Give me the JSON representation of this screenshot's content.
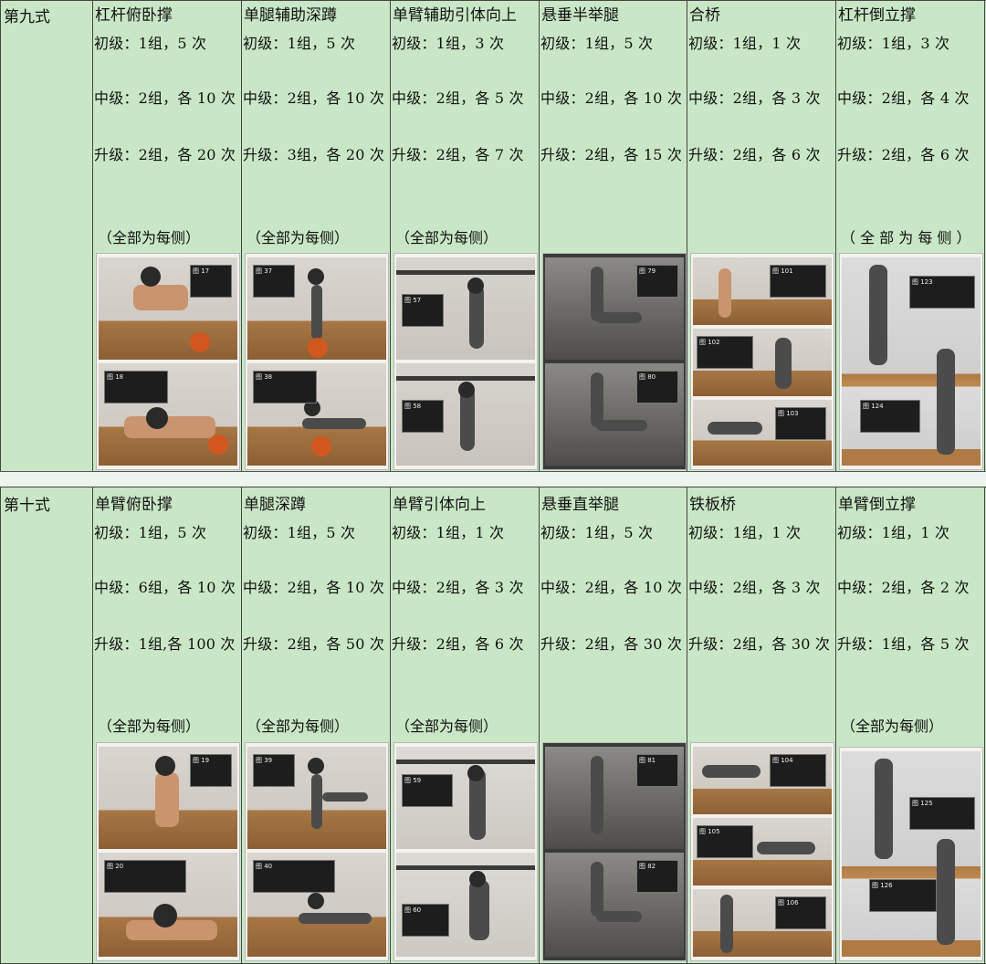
{
  "sections": [
    {
      "label": "第九式",
      "exercises": [
        {
          "name": "杠杆俯卧撑",
          "beginner": "初级：1组，5 次",
          "intermediate": "中级：2组，各 10 次",
          "advanced": "升级：2组，各 20 次",
          "note": "（全部为每侧）"
        },
        {
          "name": "单腿辅助深蹲",
          "beginner": "初级：1组，5 次",
          "intermediate": "中级：2组，各 10 次",
          "advanced": "升级：3组，各 20 次",
          "note": "（全部为每侧）"
        },
        {
          "name": "单臂辅助引体向上",
          "beginner": "初级：1组，3 次",
          "intermediate": "中级：2组，各 5 次",
          "advanced": "升级：2组，各 7 次",
          "note": "（全部为每侧）"
        },
        {
          "name": "悬垂半举腿",
          "beginner": "初级：1组，5 次",
          "intermediate": "中级：2组，各 10 次",
          "advanced": "升级：2组，各 15 次",
          "note": ""
        },
        {
          "name": "合桥",
          "beginner": "初级：1组，1 次",
          "intermediate": "中级：2组，各 3 次",
          "advanced": "升级：2组，各 6 次",
          "note": ""
        },
        {
          "name": "杠杆倒立撑",
          "beginner": "初级：1组，3 次",
          "intermediate": "中级：2组，各 4 次",
          "advanced": "升级：2组，各 6 次",
          "note": "（ 全 部 为 每 侧 ）"
        }
      ]
    },
    {
      "label": "第十式",
      "exercises": [
        {
          "name": "单臂俯卧撑",
          "beginner": "初级：1组，5 次",
          "intermediate": "中级：6组，各 10 次",
          "advanced": "升级：1组,各 100 次",
          "note": "（全部为每侧）"
        },
        {
          "name": "单腿深蹲",
          "beginner": "初级：1组，5 次",
          "intermediate": "中级：2组，各 10 次",
          "advanced": "升级：2组，各 50 次",
          "note": "（全部为每侧）"
        },
        {
          "name": "单臂引体向上",
          "beginner": "初级：1组，1 次",
          "intermediate": "中级：2组，各 3 次",
          "advanced": "升级：2组，各 6 次",
          "note": "（全部为每侧）"
        },
        {
          "name": "悬垂直举腿",
          "beginner": "初级：1组，5 次",
          "intermediate": "中级：2组，各 10 次",
          "advanced": "升级：2组，各 30 次",
          "note": ""
        },
        {
          "name": "铁板桥",
          "beginner": "初级：1组，1 次",
          "intermediate": "中级：2组，各 3 次",
          "advanced": "升级：2组，各 30 次",
          "note": ""
        },
        {
          "name": "单臂倒立撑",
          "beginner": "初级：1组，1 次",
          "intermediate": "中级：2组，各 2 次",
          "advanced": "升级：1组，各 5 次",
          "note": "（全部为每侧）"
        }
      ]
    }
  ],
  "photos": [
    [
      {
        "tags": [
          "图 17",
          "图 18"
        ],
        "icon": "push-up-photo"
      },
      {
        "tags": [
          "图 37",
          "图 38"
        ],
        "icon": "squat-photo"
      },
      {
        "tags": [
          "图 57",
          "图 58"
        ],
        "icon": "pull-up-photo"
      },
      {
        "tags": [
          "图 79",
          "图 80"
        ],
        "icon": "leg-raise-photo"
      },
      {
        "tags": [
          "图 101",
          "图 102",
          "图 103"
        ],
        "icon": "bridge-photo"
      },
      {
        "tags": [
          "图 123",
          "图 124"
        ],
        "icon": "handstand-photo"
      }
    ],
    [
      {
        "tags": [
          "图 19",
          "图 20"
        ],
        "icon": "push-up-photo"
      },
      {
        "tags": [
          "图 39",
          "图 40"
        ],
        "icon": "squat-photo"
      },
      {
        "tags": [
          "图 59",
          "图 60"
        ],
        "icon": "pull-up-photo"
      },
      {
        "tags": [
          "图 81",
          "图 82"
        ],
        "icon": "leg-raise-photo"
      },
      {
        "tags": [
          "图 104",
          "图 105",
          "图 106"
        ],
        "icon": "bridge-photo"
      },
      {
        "tags": [
          "图 125",
          "图 126"
        ],
        "icon": "handstand-photo"
      }
    ]
  ]
}
